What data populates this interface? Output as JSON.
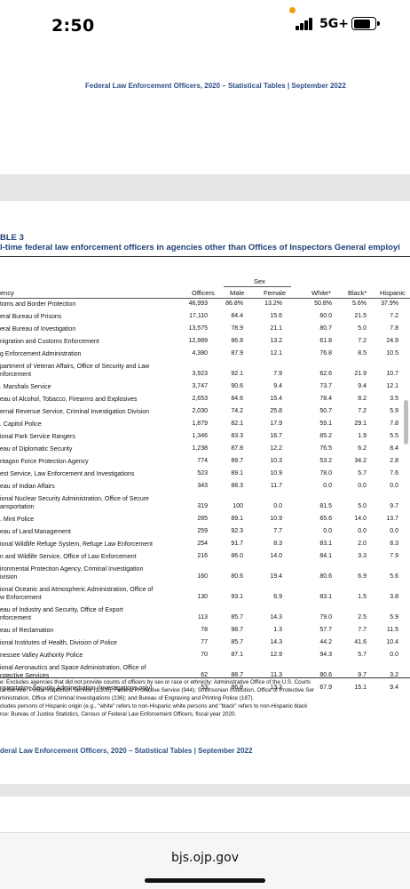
{
  "status_bar": {
    "time": "2:50",
    "network": "5G+",
    "battery_level": 0.8
  },
  "running_head_top": "Federal Law Enforcement Officers, 2020 – Statistical Tables  |  September 2022",
  "table": {
    "label": "BLE 3",
    "title": "l-time federal law enforcement officers in agencies other than Offices of Inspectors General employi",
    "group_header": "Sex",
    "columns": {
      "agency": "ency",
      "officers": "Officers",
      "male": "Male",
      "female": "Female",
      "white": "White*",
      "black": "Black*",
      "hispanic": "Hispanic"
    },
    "rows": [
      {
        "agency": [
          "toms and Border Protection"
        ],
        "officers": "46,993",
        "male": "86.8%",
        "female": "13.2%",
        "white": "50.8%",
        "black": "5.6%",
        "hispanic": "37.9%"
      },
      {
        "agency": [
          "eral Bureau of Prisons"
        ],
        "officers": "17,110",
        "male": "84.4",
        "female": "15.6",
        "white": "60.0",
        "black": "21.5",
        "hispanic": "7.2"
      },
      {
        "agency": [
          "eral Bureau of Investigation"
        ],
        "officers": "13,575",
        "male": "78.9",
        "female": "21.1",
        "white": "80.7",
        "black": "5.0",
        "hispanic": "7.8"
      },
      {
        "agency": [
          "nigration and Customs Enforcement"
        ],
        "officers": "12,989",
        "male": "86.8",
        "female": "13.2",
        "white": "61.8",
        "black": "7.2",
        "hispanic": "24.9"
      },
      {
        "agency": [
          "g Enforcement Administration"
        ],
        "officers": "4,380",
        "male": "87.9",
        "female": "12.1",
        "white": "76.8",
        "black": "8.5",
        "hispanic": "10.5"
      },
      {
        "agency": [
          "partment of Veteran Affairs, Office of Security and Law",
          "nforcement"
        ],
        "officers": "3,923",
        "male": "92.1",
        "female": "7.9",
        "white": "62.6",
        "black": "21.9",
        "hispanic": "10.7"
      },
      {
        "agency": [
          ". Marshals Service"
        ],
        "officers": "3,747",
        "male": "90.6",
        "female": "9.4",
        "white": "73.7",
        "black": "9.4",
        "hispanic": "12.1"
      },
      {
        "agency": [
          "eau of Alcohol, Tobacco, Firearms and Explosives"
        ],
        "officers": "2,653",
        "male": "84.6",
        "female": "15.4",
        "white": "78.4",
        "black": "8.2",
        "hispanic": "3.5"
      },
      {
        "agency": [
          "ernal Revenue Service, Criminal Investigation Division"
        ],
        "officers": "2,030",
        "male": "74.2",
        "female": "25.8",
        "white": "50.7",
        "black": "7.2",
        "hispanic": "5.9"
      },
      {
        "agency": [
          ". Capitol Police"
        ],
        "officers": "1,879",
        "male": "82.1",
        "female": "17.9",
        "white": "59.1",
        "black": "29.1",
        "hispanic": "7.8"
      },
      {
        "agency": [
          "ional Park Service Rangers"
        ],
        "officers": "1,346",
        "male": "83.3",
        "female": "16.7",
        "white": "85.2",
        "black": "1.9",
        "hispanic": "5.5"
      },
      {
        "agency": [
          "eau of Diplomatic Security"
        ],
        "officers": "1,238",
        "male": "87.8",
        "female": "12.2",
        "white": "76.5",
        "black": "6.2",
        "hispanic": "8.4"
      },
      {
        "agency": [
          "ntagon Force Protection Agency"
        ],
        "officers": "774",
        "male": "89.7",
        "female": "10.3",
        "white": "53.2",
        "black": "34.2",
        "hispanic": "2.8"
      },
      {
        "agency": [
          "est Service, Law Enforcement and Investigations"
        ],
        "officers": "523",
        "male": "89.1",
        "female": "10.9",
        "white": "78.0",
        "black": "5.7",
        "hispanic": "7.6"
      },
      {
        "agency": [
          "eau of Indian Affairs"
        ],
        "officers": "343",
        "male": "88.3",
        "female": "11.7",
        "white": "0.0",
        "black": "0.0",
        "hispanic": "0.0"
      },
      {
        "agency": [
          "ional Nuclear Security Administration, Office of Secure",
          "ansportation"
        ],
        "officers": "319",
        "male": "100",
        "female": "0.0",
        "white": "81.5",
        "black": "5.0",
        "hispanic": "9.7"
      },
      {
        "agency": [
          ". Mint Police"
        ],
        "officers": "285",
        "male": "89.1",
        "female": "10.9",
        "white": "65.6",
        "black": "14.0",
        "hispanic": "13.7"
      },
      {
        "agency": [
          "eau of Land Management"
        ],
        "officers": "259",
        "male": "92.3",
        "female": "7.7",
        "white": "0.0",
        "black": "0.0",
        "hispanic": "0.0"
      },
      {
        "agency": [
          "ional Wildlife Refuge System, Refuge Law Enforcement"
        ],
        "officers": "254",
        "male": "91.7",
        "female": "8.3",
        "white": "83.1",
        "black": "2.0",
        "hispanic": "8.3"
      },
      {
        "agency": [
          "n and Wildlife Service, Office of Law Enforcement"
        ],
        "officers": "216",
        "male": "86.0",
        "female": "14.0",
        "white": "84.1",
        "black": "3.3",
        "hispanic": "7.9"
      },
      {
        "agency": [
          "ironmental Protection Agency, Criminal Investigation",
          "ivision"
        ],
        "officers": "160",
        "male": "80.6",
        "female": "19.4",
        "white": "80.6",
        "black": "6.9",
        "hispanic": "5.6"
      },
      {
        "agency": [
          "ional Oceanic and Atmospheric Administration, Office of",
          "w Enforcement"
        ],
        "officers": "130",
        "male": "93.1",
        "female": "6.9",
        "white": "83.1",
        "black": "1.5",
        "hispanic": "3.8"
      },
      {
        "agency": [
          "eau of Industry and Security, Office of Export",
          "nforcement"
        ],
        "officers": "113",
        "male": "85.7",
        "female": "14.3",
        "white": "79.0",
        "black": "2.5",
        "hispanic": "5.9"
      },
      {
        "agency": [
          "eau of Reclamation"
        ],
        "officers": "78",
        "male": "98.7",
        "female": "1.3",
        "white": "57.7",
        "black": "7.7",
        "hispanic": "11.5"
      },
      {
        "agency": [
          "ional Institutes of Health, Division of Police"
        ],
        "officers": "77",
        "male": "85.7",
        "female": "14.3",
        "white": "44.2",
        "black": "41.6",
        "hispanic": "10.4"
      },
      {
        "agency": [
          "nessee Valley Authority Police"
        ],
        "officers": "70",
        "male": "87.1",
        "female": "12.9",
        "white": "94.3",
        "black": "5.7",
        "hispanic": "0.0"
      },
      {
        "agency": [
          "ional Aeronautics and Space Administration, Office of",
          "rotective Services"
        ],
        "officers": "62",
        "male": "88.7",
        "female": "11.3",
        "white": "80.6",
        "black": "9.7",
        "hispanic": "3.2"
      },
      {
        "agency": [
          "nsportation Security Administration (investigations only)"
        ],
        "officers": "53",
        "male": "86.8",
        "female": "13.2",
        "white": "67.9",
        "black": "15.1",
        "hispanic": "9.4"
      }
    ],
    "notes": [
      "e: Excludes agencies that did not provide counts of officers by sex or race or ethnicity: Administrative Office of the U.S. Courts",
      "tal Service, Postal Inspection Service (1,300); Federal Protective Service (944); Smithsonian Institution, Office of Protective Ser",
      "ministration, Office of Criminal Investigations (236); and Bureau of Engraving and Printing Police (187).",
      "cludes persons of Hispanic origin (e.g., \"white\" refers to non-Hispanic white persons and \"black\" refers to non-Hispanic black",
      "rce: Bureau of Justice Statistics, Census of Federal Law Enforcement Officers, fiscal year 2020."
    ]
  },
  "running_head_bottom": "deral Law Enforcement Officers, 2020 – Statistical Tables  |  September 2022",
  "browser": {
    "url": "bjs.ojp.gov"
  }
}
